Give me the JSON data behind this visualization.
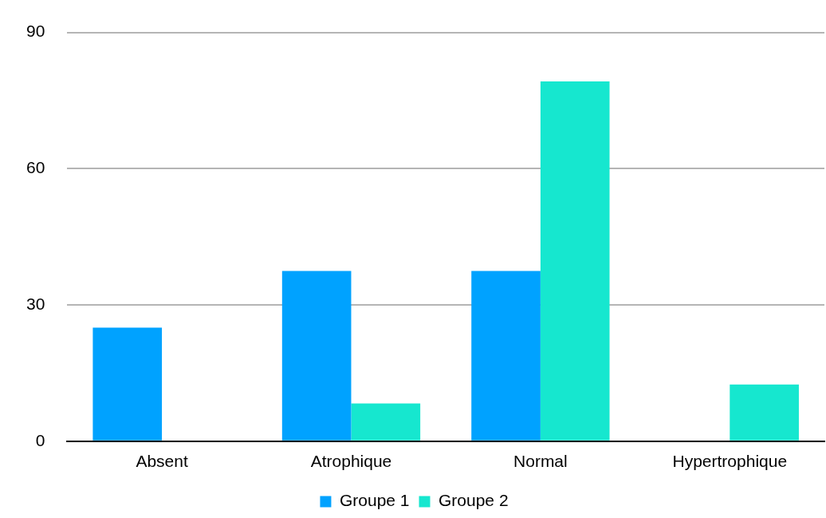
{
  "chart_data": {
    "type": "bar",
    "categories": [
      "Absent",
      "Atrophique",
      "Normal",
      "Hypertrophique"
    ],
    "series": [
      {
        "name": "Groupe 1",
        "color": "#00a2ff",
        "values": [
          25,
          37.5,
          37.5,
          0
        ]
      },
      {
        "name": "Groupe 2",
        "color": "#16e7cf",
        "values": [
          0,
          8.3,
          79.2,
          12.5
        ]
      }
    ],
    "ylim": [
      0,
      90
    ],
    "yticks": [
      0,
      30,
      60,
      90
    ],
    "grid": "y",
    "legend": "bottom"
  }
}
